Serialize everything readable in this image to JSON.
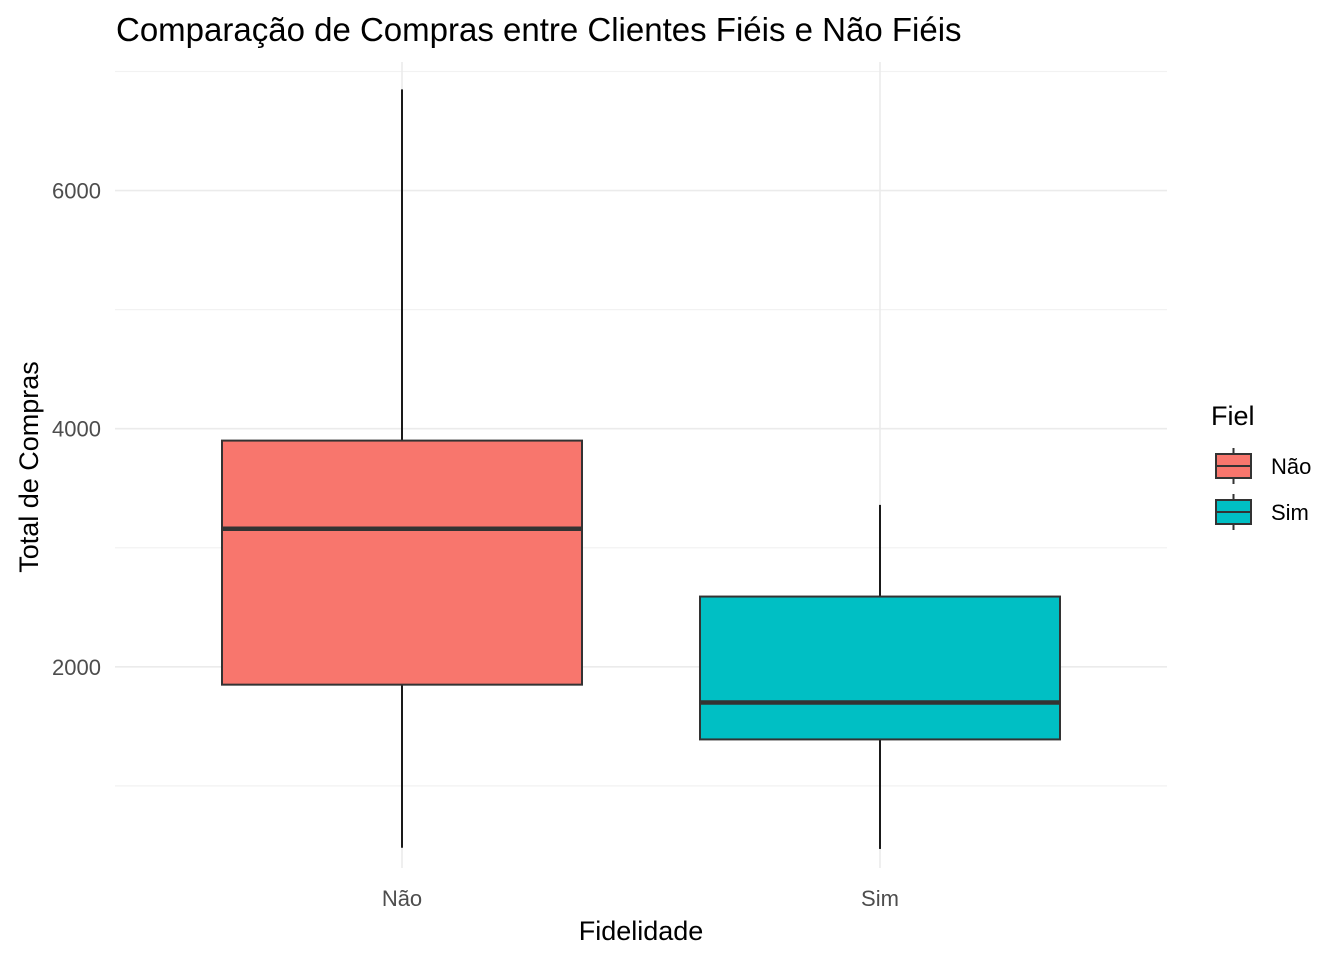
{
  "chart_data": {
    "type": "boxplot",
    "title": "Comparação de Compras entre Clientes Fiéis e Não Fiéis",
    "xlabel": "Fidelidade",
    "ylabel": "Total de Compras",
    "categories": [
      "Não",
      "Sim"
    ],
    "ylim": [
      310,
      7080
    ],
    "yticks": [
      2000,
      4000,
      6000
    ],
    "yticks_minor": [
      1000,
      3000,
      5000,
      7000
    ],
    "grid": true,
    "boxes": [
      {
        "category": "Não",
        "min": 480,
        "q1": 1850,
        "median": 3160,
        "q3": 3900,
        "max": 6850,
        "color": "#F8766D"
      },
      {
        "category": "Sim",
        "min": 470,
        "q1": 1390,
        "median": 1700,
        "q3": 2590,
        "max": 3360,
        "color": "#00BFC4"
      }
    ],
    "legend": {
      "title": "Fiel",
      "position": "right",
      "entries": [
        {
          "label": "Não",
          "color": "#F8766D"
        },
        {
          "label": "Sim",
          "color": "#00BFC4"
        }
      ]
    }
  }
}
